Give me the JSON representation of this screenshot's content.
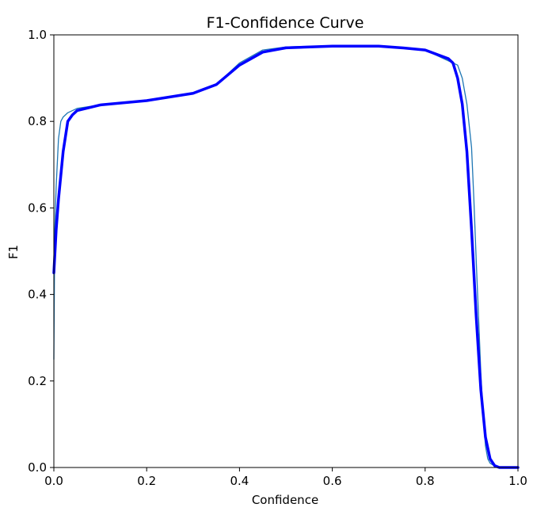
{
  "chart_data": {
    "type": "line",
    "title": "F1-Confidence Curve",
    "xlabel": "Confidence",
    "ylabel": "F1",
    "xlim": [
      0.0,
      1.0
    ],
    "ylim": [
      0.0,
      1.0
    ],
    "x_ticks": [
      "0.0",
      "0.2",
      "0.4",
      "0.6",
      "0.8",
      "1.0"
    ],
    "y_ticks": [
      "0.0",
      "0.2",
      "0.4",
      "0.6",
      "0.8",
      "1.0"
    ],
    "grid": false,
    "legend": "none",
    "series": [
      {
        "color": "#1f77b4",
        "style": "thin",
        "x": [
          0.0,
          0.002,
          0.005,
          0.01,
          0.015,
          0.02,
          0.03,
          0.05,
          0.1,
          0.2,
          0.3,
          0.35,
          0.4,
          0.45,
          0.5,
          0.6,
          0.7,
          0.8,
          0.85,
          0.87,
          0.88,
          0.89,
          0.9,
          0.905,
          0.91,
          0.915,
          0.92,
          0.925,
          0.93,
          0.935,
          0.94,
          0.95,
          0.96,
          1.0
        ],
        "y": [
          0.25,
          0.55,
          0.65,
          0.76,
          0.8,
          0.81,
          0.82,
          0.83,
          0.838,
          0.848,
          0.865,
          0.885,
          0.935,
          0.965,
          0.972,
          0.975,
          0.973,
          0.965,
          0.94,
          0.93,
          0.9,
          0.84,
          0.74,
          0.62,
          0.48,
          0.35,
          0.22,
          0.12,
          0.05,
          0.02,
          0.01,
          0.003,
          0.0,
          0.0
        ]
      },
      {
        "color": "#0000ff",
        "style": "thick",
        "x": [
          0.0,
          0.005,
          0.01,
          0.02,
          0.03,
          0.04,
          0.05,
          0.1,
          0.2,
          0.3,
          0.35,
          0.4,
          0.45,
          0.5,
          0.6,
          0.7,
          0.75,
          0.8,
          0.85,
          0.86,
          0.87,
          0.88,
          0.89,
          0.9,
          0.91,
          0.92,
          0.93,
          0.94,
          0.95,
          0.96,
          1.0
        ],
        "y": [
          0.45,
          0.55,
          0.62,
          0.73,
          0.8,
          0.815,
          0.825,
          0.838,
          0.848,
          0.865,
          0.885,
          0.93,
          0.96,
          0.97,
          0.974,
          0.974,
          0.97,
          0.965,
          0.945,
          0.935,
          0.9,
          0.84,
          0.73,
          0.55,
          0.35,
          0.18,
          0.07,
          0.02,
          0.004,
          0.0,
          0.0
        ]
      }
    ]
  }
}
